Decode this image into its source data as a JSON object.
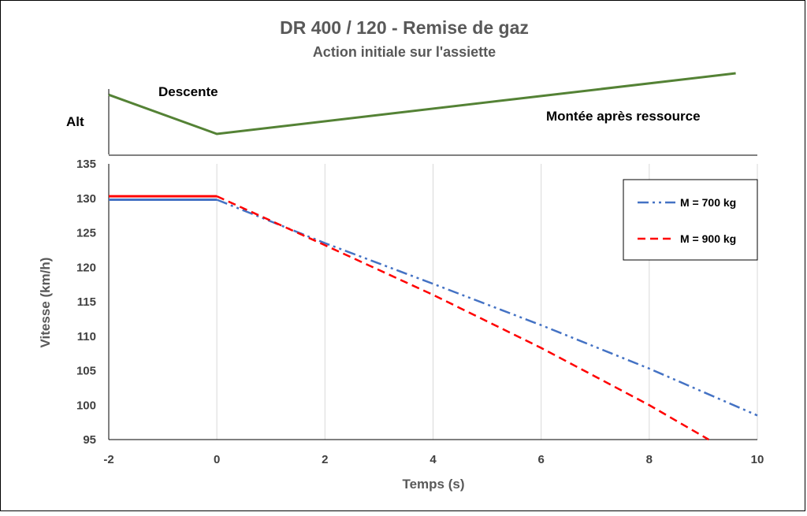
{
  "chart_data": {
    "type": "line",
    "title": "DR 400 / 120 - Remise de gaz",
    "subtitle": "Action initiale sur l'assiette",
    "xlabel": "Temps (s)",
    "ylabel": "Vitesse (km/h)",
    "xlim": [
      -2,
      10
    ],
    "ylim": [
      95,
      135
    ],
    "xticks": [
      -2,
      0,
      2,
      4,
      6,
      8,
      10
    ],
    "yticks": [
      95,
      100,
      105,
      110,
      115,
      120,
      125,
      130,
      135
    ],
    "grid": "vertical",
    "legend_position": "top-right",
    "series": [
      {
        "name": "M = 700 kg",
        "color": "#4472C4",
        "style": "dash-dot-dot",
        "points": [
          [
            -2,
            129.8
          ],
          [
            0,
            129.8
          ],
          [
            2,
            123.5
          ],
          [
            4,
            117.6
          ],
          [
            6,
            111.6
          ],
          [
            8,
            105.3
          ],
          [
            10,
            98.5
          ]
        ]
      },
      {
        "name": "M = 900 kg",
        "color": "#FF0000",
        "style": "dashed",
        "points": [
          [
            -2,
            130.3
          ],
          [
            0,
            130.3
          ],
          [
            2,
            123.2
          ],
          [
            4,
            116.0
          ],
          [
            6,
            108.3
          ],
          [
            8,
            100.0
          ],
          [
            9.1,
            95.0
          ]
        ]
      }
    ],
    "altitude_profile": {
      "label": "Alt",
      "color": "#548235",
      "points": [
        [
          -2,
          1.0
        ],
        [
          0,
          0.0
        ],
        [
          9.6,
          1.55
        ]
      ],
      "annotations": [
        "Descente",
        "Montée après ressource"
      ]
    }
  }
}
